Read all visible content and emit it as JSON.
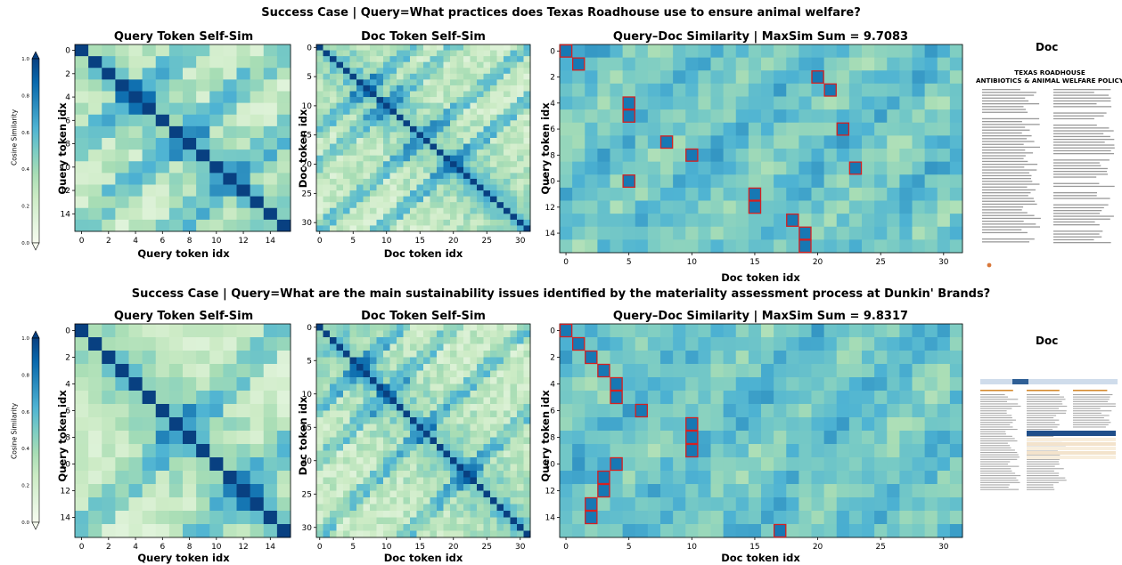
{
  "suptitles": [
    "Success Case | Query=What practices does Texas Roadhouse use to ensure animal welfare?",
    "Success Case | Query=What are the main sustainability issues identified by the materiality assessment process at Dunkin' Brands?"
  ],
  "panel_titles": {
    "query_self": "Query Token Self-Sim",
    "doc_self": "Doc Token Self-Sim",
    "query_doc_prefix": "Query–Doc Similarity | MaxSim Sum = ",
    "doc": "Doc"
  },
  "axis_labels": {
    "query_token_idx": "Query token idx",
    "doc_token_idx": "Doc token idx"
  },
  "colorbar": {
    "label": "Cosine Similarity",
    "ticks": [
      "0.0",
      "0.2",
      "0.4",
      "0.6",
      "0.8",
      "1.0"
    ],
    "colormap": [
      "#f7fcf0",
      "#e0f3db",
      "#ccebc5",
      "#a8ddb5",
      "#7bccc4",
      "#4eb3d3",
      "#2b8cbe",
      "#0868ac",
      "#084081"
    ]
  },
  "rows": [
    {
      "maxsim_sum": "9.7083",
      "doc_image": {
        "heading": "TEXAS ROADHOUSE\nANTIBIOTICS & ANIMAL WELFARE POLICY",
        "style": "text-policy"
      }
    },
    {
      "maxsim_sum": "9.8317",
      "doc_image": {
        "heading": "",
        "style": "report-page"
      }
    }
  ],
  "chart_data": [
    {
      "type": "heatmap",
      "title": "Query Token Self-Sim",
      "xlabel": "Query token idx",
      "ylabel": "Query token idx",
      "x_ticks": [
        0,
        2,
        4,
        6,
        8,
        10,
        12,
        14
      ],
      "y_ticks": [
        0,
        2,
        4,
        6,
        8,
        10,
        12,
        14
      ],
      "size": [
        16,
        16
      ],
      "diagonal": 1.0,
      "clim": [
        0,
        1
      ]
    },
    {
      "type": "heatmap",
      "title": "Doc Token Self-Sim",
      "xlabel": "Doc token idx",
      "ylabel": "Doc token idx",
      "x_ticks": [
        0,
        5,
        10,
        15,
        20,
        25,
        30
      ],
      "y_ticks": [
        0,
        5,
        10,
        15,
        20,
        25,
        30
      ],
      "size": [
        32,
        32
      ],
      "diagonal": 1.0,
      "clim": [
        0,
        1
      ]
    },
    {
      "type": "heatmap",
      "title": "Query–Doc Similarity | MaxSim Sum = 9.7083",
      "xlabel": "Doc token idx",
      "ylabel": "Query token idx",
      "x_ticks": [
        0,
        5,
        10,
        15,
        20,
        25,
        30
      ],
      "y_ticks": [
        0,
        2,
        4,
        6,
        8,
        10,
        12,
        14
      ],
      "size": [
        16,
        32
      ],
      "maxsim_sum": 9.7083,
      "maxsim_doc_idx": [
        0,
        1,
        20,
        21,
        5,
        5,
        22,
        8,
        10,
        23,
        5,
        15,
        15,
        18,
        19,
        19
      ]
    },
    {
      "type": "heatmap",
      "title": "Query Token Self-Sim",
      "xlabel": "Query token idx",
      "ylabel": "Query token idx",
      "x_ticks": [
        0,
        2,
        4,
        6,
        8,
        10,
        12,
        14
      ],
      "y_ticks": [
        0,
        2,
        4,
        6,
        8,
        10,
        12,
        14
      ],
      "size": [
        16,
        16
      ],
      "diagonal": 1.0,
      "clim": [
        0,
        1
      ]
    },
    {
      "type": "heatmap",
      "title": "Doc Token Self-Sim",
      "xlabel": "Doc token idx",
      "ylabel": "Doc token idx",
      "x_ticks": [
        0,
        5,
        10,
        15,
        20,
        25,
        30
      ],
      "y_ticks": [
        0,
        5,
        10,
        15,
        20,
        25,
        30
      ],
      "size": [
        32,
        32
      ],
      "diagonal": 1.0,
      "clim": [
        0,
        1
      ]
    },
    {
      "type": "heatmap",
      "title": "Query–Doc Similarity | MaxSim Sum = 9.8317",
      "xlabel": "Doc token idx",
      "ylabel": "Query token idx",
      "x_ticks": [
        0,
        5,
        10,
        15,
        20,
        25,
        30
      ],
      "y_ticks": [
        0,
        2,
        4,
        6,
        8,
        10,
        12,
        14
      ],
      "size": [
        16,
        32
      ],
      "maxsim_sum": 9.8317,
      "maxsim_doc_idx": [
        0,
        1,
        2,
        3,
        4,
        4,
        6,
        10,
        10,
        10,
        4,
        3,
        3,
        2,
        2,
        17
      ]
    }
  ]
}
